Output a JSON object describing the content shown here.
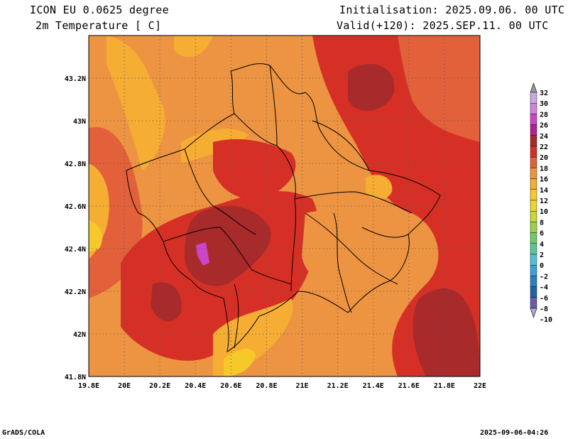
{
  "header": {
    "model": "ICON EU 0.0625 degree",
    "variable": "2m Temperature [ C]",
    "init": "Initialisation: 2025.09.06. 00 UTC",
    "valid": "Valid(+120): 2025.SEP.11. 00 UTC"
  },
  "footer": {
    "left": "GrADS/COLA",
    "right": "2025-09-06-04:26"
  },
  "map": {
    "lon_range": [
      19.8,
      22.0
    ],
    "lat_range": [
      41.8,
      43.4
    ],
    "lon_labels": [
      "19.8E",
      "20E",
      "20.2E",
      "20.4E",
      "20.6E",
      "20.8E",
      "21E",
      "21.2E",
      "21.4E",
      "21.6E",
      "21.8E",
      "22E"
    ],
    "lat_labels": [
      "41.8N",
      "42N",
      "42.2N",
      "42.4N",
      "42.6N",
      "42.8N",
      "43N",
      "43.2N"
    ]
  },
  "colorbar": {
    "labels": [
      "32",
      "30",
      "28",
      "26",
      "24",
      "22",
      "20",
      "18",
      "16",
      "14",
      "12",
      "10",
      "8",
      "6",
      "4",
      "2",
      "0",
      "-2",
      "-4",
      "-6",
      "-8",
      "-10"
    ],
    "colors": [
      "#c9a9dd",
      "#d282d8",
      "#cc44c8",
      "#b5218f",
      "#a82a2a",
      "#d63026",
      "#e2603a",
      "#ed9442",
      "#f5ad33",
      "#f6c92b",
      "#ecd52f",
      "#cbd63a",
      "#9cd04c",
      "#6ecb6c",
      "#5bc59a",
      "#56bfd1",
      "#3f9fd8",
      "#2b7fc1",
      "#1f62a6",
      "#6a5ba8"
    ]
  }
}
